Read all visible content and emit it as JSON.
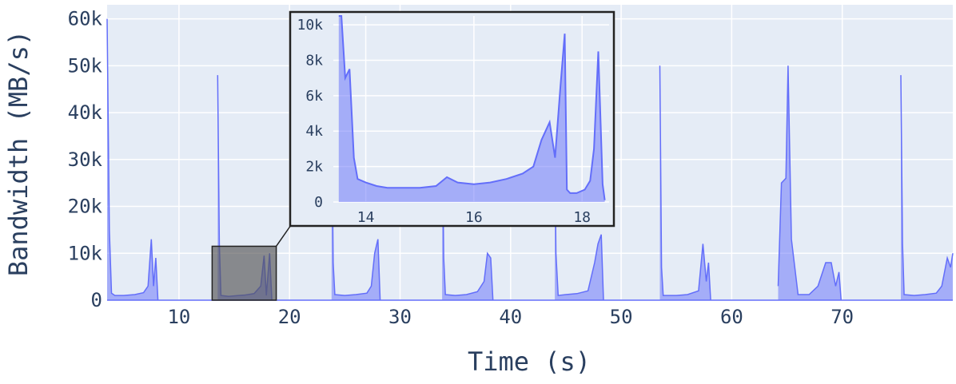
{
  "chart_data": {
    "type": "area",
    "xlabel": "Time (s)",
    "ylabel": "Bandwidth (MB/s)",
    "xlim": [
      3.5,
      80
    ],
    "ylim": [
      0,
      63000
    ],
    "x_ticks": [
      10,
      20,
      30,
      40,
      50,
      60,
      70
    ],
    "y_ticks": [
      0,
      10000,
      20000,
      30000,
      40000,
      50000,
      60000
    ],
    "y_tick_labels": [
      "0",
      "10k",
      "20k",
      "30k",
      "40k",
      "50k",
      "60k"
    ],
    "grid": true,
    "series": [
      {
        "color": "#636efa",
        "segments": [
          {
            "x": [
              3.5,
              3.7,
              3.9,
              4.2,
              5,
              6,
              6.8,
              7.2,
              7.5,
              7.7,
              7.9,
              8.1
            ],
            "y": [
              60000,
              15000,
              1500,
              1000,
              1000,
              1200,
              1600,
              3000,
              13000,
              3000,
              9000,
              0
            ]
          },
          {
            "x": [
              13.5,
              13.65,
              13.8,
              14.5,
              15.4,
              16,
              16.8,
              17.4,
              17.7,
              17.9,
              18.2,
              18.4
            ],
            "y": [
              48000,
              12000,
              1000,
              800,
              1000,
              1100,
              1400,
              3000,
              9500,
              1000,
              10000,
              0
            ]
          },
          {
            "x": [
              23.8,
              23.95,
              24.1,
              25,
              26,
              27,
              27.4,
              27.7,
              28,
              28.2
            ],
            "y": [
              45000,
              8000,
              1200,
              1000,
              1200,
              1500,
              3000,
              10000,
              13000,
              0
            ]
          },
          {
            "x": [
              33.8,
              33.95,
              34.1,
              35,
              36,
              37,
              37.6,
              37.9,
              38.2,
              38.4
            ],
            "y": [
              42000,
              9000,
              1200,
              1000,
              1200,
              1800,
              4000,
              10000,
              9000,
              0
            ]
          },
          {
            "x": [
              44.0,
              44.1,
              44.3,
              45,
              46,
              47,
              47.6,
              47.9,
              48.2,
              48.4
            ],
            "y": [
              36000,
              10000,
              1000,
              1200,
              1400,
              2000,
              8000,
              12000,
              14000,
              0
            ]
          },
          {
            "x": [
              53.5,
              53.65,
              53.8,
              55,
              56,
              57,
              57.4,
              57.7,
              57.9,
              58.1
            ],
            "y": [
              50000,
              7000,
              1000,
              1000,
              1200,
              2000,
              12000,
              4000,
              8000,
              0
            ]
          },
          {
            "x": [
              64.2,
              64.5,
              64.9,
              65.1,
              65.4,
              66,
              67,
              67.8,
              68.5,
              69,
              69.4,
              69.7,
              69.9
            ],
            "y": [
              3000,
              25000,
              26000,
              50000,
              13000,
              1200,
              1200,
              3000,
              8000,
              8000,
              3000,
              6000,
              0
            ]
          },
          {
            "x": [
              75.3,
              75.45,
              75.6,
              76.5,
              77.5,
              78.5,
              79,
              79.5,
              79.8,
              80
            ],
            "y": [
              48000,
              12000,
              1200,
              1000,
              1200,
              1500,
              3000,
              9000,
              7000,
              10000
            ]
          }
        ]
      }
    ],
    "highlight_region": {
      "x": [
        13.0,
        18.8
      ],
      "y": [
        0,
        11500
      ]
    },
    "inset": {
      "xlim": [
        13.4,
        18.5
      ],
      "ylim": [
        0,
        10500
      ],
      "x_ticks": [
        14,
        16,
        18
      ],
      "y_ticks": [
        0,
        2000,
        4000,
        6000,
        8000,
        10000
      ],
      "y_tick_labels": [
        "0",
        "2k",
        "4k",
        "6k",
        "8k",
        "10k"
      ],
      "x": [
        13.5,
        13.55,
        13.62,
        13.7,
        13.78,
        13.85,
        14.0,
        14.2,
        14.4,
        14.7,
        15.0,
        15.3,
        15.5,
        15.7,
        16.0,
        16.3,
        16.6,
        16.9,
        17.1,
        17.25,
        17.4,
        17.5,
        17.6,
        17.68,
        17.72,
        17.78,
        17.9,
        18.05,
        18.15,
        18.22,
        18.3,
        18.38,
        18.42
      ],
      "y": [
        10500,
        10500,
        7000,
        7500,
        2500,
        1300,
        1100,
        900,
        800,
        800,
        800,
        900,
        1400,
        1100,
        1000,
        1100,
        1300,
        1600,
        2000,
        3500,
        4500,
        2500,
        6500,
        9500,
        700,
        500,
        500,
        700,
        1200,
        3000,
        8500,
        1000,
        100
      ]
    }
  }
}
